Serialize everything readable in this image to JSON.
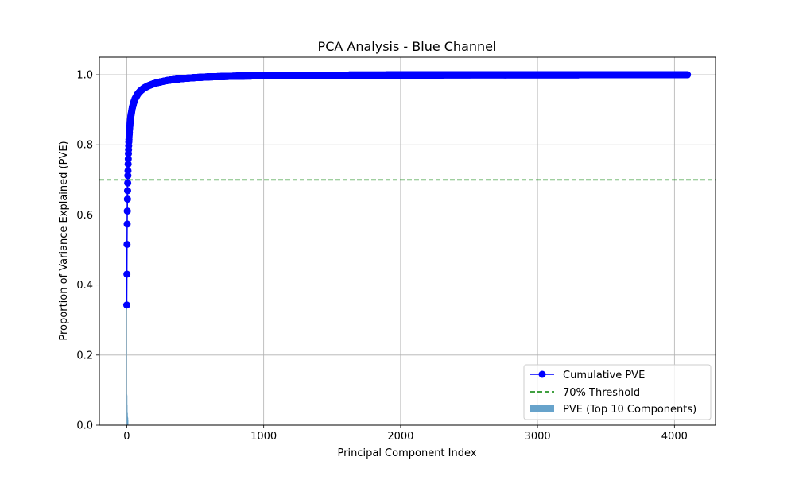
{
  "chart_data": {
    "type": "line",
    "title": "PCA Analysis - Blue Channel",
    "xlabel": "Principal Component Index",
    "ylabel": "Proportion of Variance Explained (PVE)",
    "xlim": [
      -200,
      4300
    ],
    "ylim": [
      0,
      1.05
    ],
    "x_ticks": [
      0,
      1000,
      2000,
      3000,
      4000
    ],
    "x_tick_labels": [
      "0",
      "1000",
      "2000",
      "3000",
      "4000"
    ],
    "y_ticks": [
      0.0,
      0.2,
      0.4,
      0.6,
      0.8,
      1.0
    ],
    "y_tick_labels": [
      "0.0",
      "0.2",
      "0.4",
      "0.6",
      "0.8",
      "1.0"
    ],
    "grid": true,
    "legend_position": "lower right",
    "series": [
      {
        "name": "Cumulative PVE",
        "kind": "line-marker",
        "color": "#0000ff",
        "n_components": 4096,
        "x": [
          0,
          1,
          2,
          3,
          4,
          5,
          6,
          7,
          8,
          9,
          10,
          12,
          15,
          20,
          25,
          30,
          40,
          50,
          60,
          80,
          100,
          130,
          160,
          200,
          250,
          300,
          400,
          500,
          600,
          800,
          1000,
          1200,
          1500,
          2000,
          2500,
          3000,
          3500,
          4095
        ],
        "values": [
          0.343,
          0.431,
          0.516,
          0.574,
          0.611,
          0.645,
          0.669,
          0.691,
          0.712,
          0.726,
          0.745,
          0.775,
          0.808,
          0.843,
          0.865,
          0.882,
          0.905,
          0.92,
          0.931,
          0.945,
          0.954,
          0.963,
          0.969,
          0.975,
          0.98,
          0.984,
          0.989,
          0.992,
          0.994,
          0.996,
          0.997,
          0.998,
          0.999,
          0.9995,
          0.9998,
          0.9999,
          1.0,
          1.0
        ]
      },
      {
        "name": "70% Threshold",
        "kind": "hline",
        "color": "#008000",
        "value": 0.7
      },
      {
        "name": "PVE (Top 10 Components)",
        "kind": "bar",
        "color": "#5f9ec8",
        "x": [
          0,
          1,
          2,
          3,
          4,
          5,
          6,
          7,
          8,
          9
        ],
        "values": [
          0.343,
          0.088,
          0.085,
          0.058,
          0.037,
          0.034,
          0.024,
          0.022,
          0.021,
          0.014
        ]
      }
    ]
  }
}
